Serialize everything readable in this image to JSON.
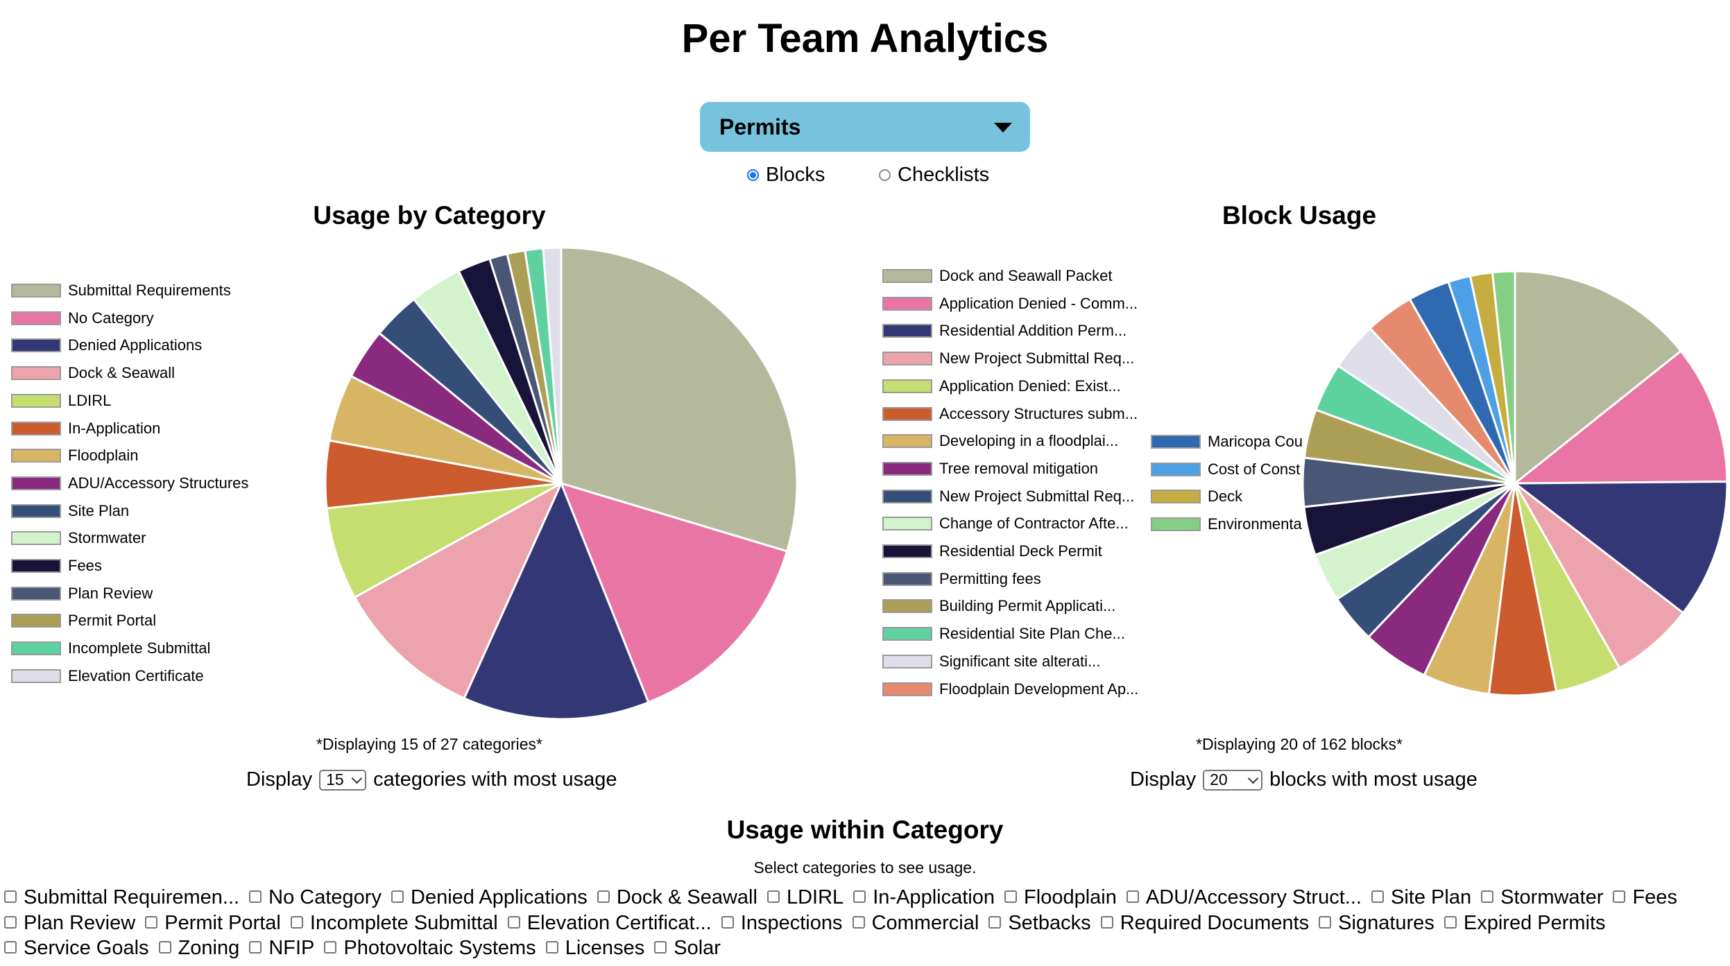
{
  "page": {
    "title": "Per Team Analytics",
    "team_select": "Permits",
    "radios": [
      {
        "label": "Blocks",
        "checked": true
      },
      {
        "label": "Checklists",
        "checked": false
      }
    ]
  },
  "colors": {
    "Submittal Requirements": "#b5b99c",
    "No Category": "#e975a5",
    "Denied Applications": "#343775",
    "Dock & Seawall": "#eda3ad",
    "LDIRL": "#c6de6f",
    "In-Application": "#cc5b2e",
    "Floodplain": "#d8b565",
    "ADU/Accessory Structures": "#8a2a7f",
    "Site Plan": "#344e78",
    "Stormwater": "#d3f3cd",
    "Fees": "#181339",
    "Plan Review": "#4a5675",
    "Permit Portal": "#ad9e55",
    "Incomplete Submittal": "#5ed1a1",
    "Elevation Certificate": "#dfdde8",
    "Floodplain Development": "#e58a6f",
    "Maricopa": "#2f69b1",
    "Cost of Construction": "#4ea0e6",
    "Deck": "#c5ad41",
    "Environmental": "#85cf85"
  },
  "chart_data": [
    {
      "type": "pie",
      "title": "Usage by Category",
      "note": "*Displaying 15 of 27 categories*",
      "display": {
        "prefix": "Display",
        "value": "15",
        "suffix": "categories with most usage"
      },
      "legend_position": "left",
      "slices": [
        {
          "label": "Submittal Requirements",
          "value": 29.0
        },
        {
          "label": "No Category",
          "value": 14.0
        },
        {
          "label": "Denied Applications",
          "value": 12.5
        },
        {
          "label": "Dock & Seawall",
          "value": 10.0
        },
        {
          "label": "LDIRL",
          "value": 6.2
        },
        {
          "label": "In-Application",
          "value": 4.5
        },
        {
          "label": "Floodplain",
          "value": 4.5
        },
        {
          "label": "ADU/Accessory Structures",
          "value": 3.4
        },
        {
          "label": "Site Plan",
          "value": 3.2
        },
        {
          "label": "Stormwater",
          "value": 3.5
        },
        {
          "label": "Fees",
          "value": 2.2
        },
        {
          "label": "Plan Review",
          "value": 1.2
        },
        {
          "label": "Permit Portal",
          "value": 1.2
        },
        {
          "label": "Incomplete Submittal",
          "value": 1.2
        },
        {
          "label": "Elevation Certificate",
          "value": 1.2
        }
      ]
    },
    {
      "type": "pie",
      "title": "Block Usage",
      "note": "*Displaying 20 of 162 blocks*",
      "display": {
        "prefix": "Display",
        "value": "20",
        "suffix": "blocks with most usage"
      },
      "legend_position": "left",
      "slices": [
        {
          "label": "Dock and Seawall Packet",
          "color": "Submittal Requirements",
          "value": 13.5
        },
        {
          "label": "Application Denied - Comm...",
          "color": "No Category",
          "value": 10.0
        },
        {
          "label": "Residential Addition Perm...",
          "color": "Denied Applications",
          "value": 10.0
        },
        {
          "label": "New Project Submittal Req...",
          "color": "Dock & Seawall",
          "value": 6.0
        },
        {
          "label": "Application Denied: Exist...",
          "color": "LDIRL",
          "value": 4.8
        },
        {
          "label": "Accessory Structures subm...",
          "color": "In-Application",
          "value": 4.8
        },
        {
          "label": "Developing in a floodplai...",
          "color": "Floodplain",
          "value": 4.8
        },
        {
          "label": "Tree removal mitigation",
          "color": "ADU/Accessory Structures",
          "value": 4.8
        },
        {
          "label": "New Project Submittal Req...",
          "color": "Site Plan",
          "value": 3.5
        },
        {
          "label": "Change of Contractor Afte...",
          "color": "Stormwater",
          "value": 3.5
        },
        {
          "label": "Residential Deck Permit",
          "color": "Fees",
          "value": 3.5
        },
        {
          "label": "Permitting fees",
          "color": "Plan Review",
          "value": 3.5
        },
        {
          "label": "Building Permit Applicati...",
          "color": "Permit Portal",
          "value": 3.5
        },
        {
          "label": "Residential Site Plan Che...",
          "color": "Incomplete Submittal",
          "value": 3.5
        },
        {
          "label": "Significant site alterati...",
          "color": "Elevation Certificate",
          "value": 3.5
        },
        {
          "label": "Floodplain Development Ap...",
          "color": "Floodplain Development",
          "value": 3.5
        },
        {
          "label": "Maricopa Cou",
          "color": "Maricopa",
          "value": 3.0
        },
        {
          "label": "Cost of Const",
          "color": "Cost of Construction",
          "value": 1.6
        },
        {
          "label": "Deck",
          "color": "Deck",
          "value": 1.6
        },
        {
          "label": "Environmenta",
          "color": "Environmental",
          "value": 1.6
        }
      ]
    }
  ],
  "usage_within": {
    "title": "Usage within Category",
    "subtitle": "Select categories to see usage.",
    "categories": [
      "Submittal Requiremen...",
      "No Category",
      "Denied Applications",
      "Dock & Seawall",
      "LDIRL",
      "In-Application",
      "Floodplain",
      "ADU/Accessory Struct...",
      "Site Plan",
      "Stormwater",
      "Fees",
      "Plan Review",
      "Permit Portal",
      "Incomplete Submittal",
      "Elevation Certificat...",
      "Inspections",
      "Commercial",
      "Setbacks",
      "Required Documents",
      "Signatures",
      "Expired Permits",
      "Service Goals",
      "Zoning",
      "NFIP",
      "Photovoltaic Systems",
      "Licenses",
      "Solar"
    ]
  }
}
